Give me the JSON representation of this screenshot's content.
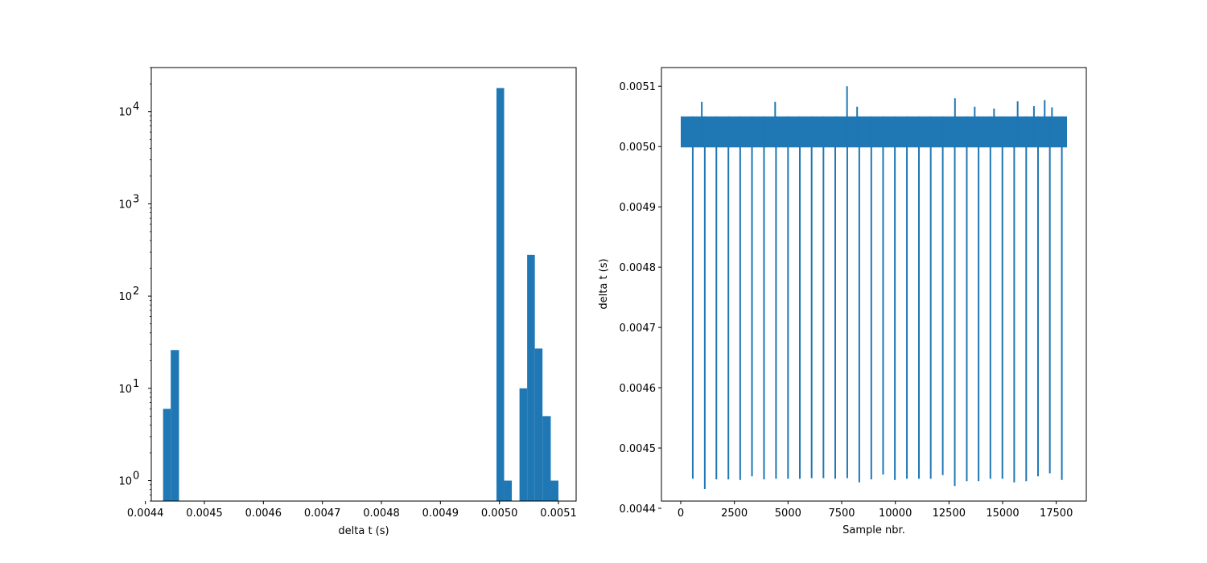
{
  "chart_data": [
    {
      "type": "bar",
      "subtype": "histogram",
      "xlabel": "delta t (s)",
      "ylabel": "",
      "yscale": "log",
      "xlim": [
        0.00441,
        0.00513
      ],
      "ylim": [
        0.6,
        30000
      ],
      "x_ticks": [
        "0.0044",
        "0.0045",
        "0.0046",
        "0.0047",
        "0.0048",
        "0.0049",
        "0.0050",
        "0.0051"
      ],
      "y_ticks": [
        {
          "base": "10",
          "exp": "0"
        },
        {
          "base": "10",
          "exp": "1"
        },
        {
          "base": "10",
          "exp": "2"
        },
        {
          "base": "10",
          "exp": "3"
        },
        {
          "base": "10",
          "exp": "4"
        }
      ],
      "color": "#1f77b4",
      "bins": [
        {
          "x0": 0.00443,
          "x1": 0.004443,
          "count": 6
        },
        {
          "x0": 0.004443,
          "x1": 0.004457,
          "count": 26
        },
        {
          "x0": 0.004995,
          "x1": 0.005008,
          "count": 18000
        },
        {
          "x0": 0.005008,
          "x1": 0.005021,
          "count": 1
        },
        {
          "x0": 0.005034,
          "x1": 0.005047,
          "count": 10
        },
        {
          "x0": 0.005047,
          "x1": 0.00506,
          "count": 280
        },
        {
          "x0": 0.00506,
          "x1": 0.005073,
          "count": 27
        },
        {
          "x0": 0.005073,
          "x1": 0.005087,
          "count": 5
        },
        {
          "x0": 0.005087,
          "x1": 0.0051,
          "count": 1
        }
      ],
      "grid": false,
      "legend": "none"
    },
    {
      "type": "line",
      "xlabel": "Sample nbr.",
      "ylabel": "delta t (s)",
      "xlim": [
        -900,
        18900
      ],
      "ylim": [
        0.004412,
        0.005131
      ],
      "x_ticks": [
        "0",
        "2500",
        "5000",
        "7500",
        "10000",
        "12500",
        "15000",
        "17500"
      ],
      "y_ticks": [
        "0.0044",
        "0.0045",
        "0.0046",
        "0.0047",
        "0.0048",
        "0.0049",
        "0.0050",
        "0.0051"
      ],
      "color": "#1f77b4",
      "baseline": 0.005,
      "band_upper": 0.00505,
      "samples": 18000,
      "dips": [
        {
          "x": 560,
          "y": 0.004449
        },
        {
          "x": 1120,
          "y": 0.004432
        },
        {
          "x": 1660,
          "y": 0.004448
        },
        {
          "x": 2220,
          "y": 0.004448
        },
        {
          "x": 2770,
          "y": 0.004447
        },
        {
          "x": 3320,
          "y": 0.004453
        },
        {
          "x": 3880,
          "y": 0.004448
        },
        {
          "x": 4440,
          "y": 0.004449
        },
        {
          "x": 5000,
          "y": 0.004449
        },
        {
          "x": 5550,
          "y": 0.004449
        },
        {
          "x": 6100,
          "y": 0.00445
        },
        {
          "x": 6650,
          "y": 0.00445
        },
        {
          "x": 7200,
          "y": 0.004449
        },
        {
          "x": 7760,
          "y": 0.00445
        },
        {
          "x": 8320,
          "y": 0.004443
        },
        {
          "x": 8880,
          "y": 0.004448
        },
        {
          "x": 9430,
          "y": 0.004456
        },
        {
          "x": 9980,
          "y": 0.004447
        },
        {
          "x": 10540,
          "y": 0.004449
        },
        {
          "x": 11100,
          "y": 0.004449
        },
        {
          "x": 11650,
          "y": 0.004449
        },
        {
          "x": 12210,
          "y": 0.004455
        },
        {
          "x": 12770,
          "y": 0.004437
        },
        {
          "x": 13330,
          "y": 0.004445
        },
        {
          "x": 13880,
          "y": 0.004445
        },
        {
          "x": 14430,
          "y": 0.004449
        },
        {
          "x": 14990,
          "y": 0.004449
        },
        {
          "x": 15540,
          "y": 0.004443
        },
        {
          "x": 16100,
          "y": 0.004445
        },
        {
          "x": 16650,
          "y": 0.004453
        },
        {
          "x": 17200,
          "y": 0.004458
        },
        {
          "x": 17760,
          "y": 0.004447
        }
      ],
      "spikes": [
        {
          "x": 980,
          "y": 0.005074
        },
        {
          "x": 4400,
          "y": 0.005074
        },
        {
          "x": 7750,
          "y": 0.0051
        },
        {
          "x": 8220,
          "y": 0.005066
        },
        {
          "x": 12780,
          "y": 0.00508
        },
        {
          "x": 13700,
          "y": 0.005066
        },
        {
          "x": 14600,
          "y": 0.005063
        },
        {
          "x": 15700,
          "y": 0.005075
        },
        {
          "x": 16460,
          "y": 0.005067
        },
        {
          "x": 16960,
          "y": 0.005077
        },
        {
          "x": 17300,
          "y": 0.005065
        }
      ],
      "grid": false,
      "legend": "none"
    }
  ]
}
